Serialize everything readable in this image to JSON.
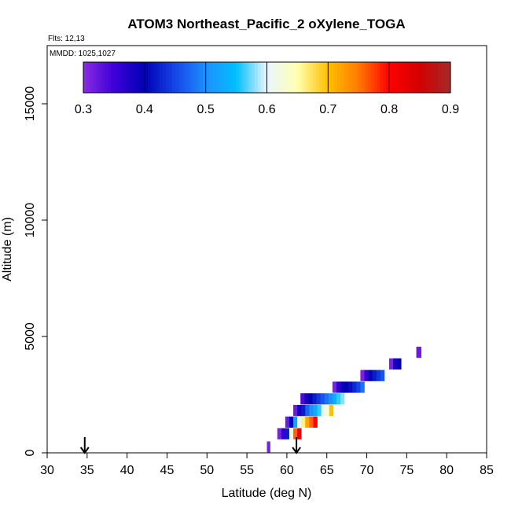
{
  "chart_data": {
    "type": "heatmap",
    "title": "ATOM3 Northeast_Pacific_2 oXylene_TOGA",
    "flights_label": "Flts: 12,13",
    "mmdd_label": "MMDD: 1025,1027",
    "xlabel": "Latitude (deg N)",
    "ylabel": "Altitude (m)",
    "xlim": [
      30,
      85
    ],
    "ylim": [
      0,
      17500
    ],
    "x_ticks": [
      "30",
      "35",
      "40",
      "45",
      "50",
      "55",
      "60",
      "65",
      "70",
      "75",
      "80",
      "85"
    ],
    "y_ticks": [
      "0",
      "5000",
      "10000",
      "15000"
    ],
    "colorbar": {
      "range": [
        0.3,
        0.9
      ],
      "ticks": [
        "0.3",
        "0.4",
        "0.5",
        "0.6",
        "0.7",
        "0.8",
        "0.9"
      ],
      "colors": [
        {
          "v": 0.3,
          "c": "#8a2be2"
        },
        {
          "v": 0.35,
          "c": "#3d00d8"
        },
        {
          "v": 0.4,
          "c": "#0000b4"
        },
        {
          "v": 0.45,
          "c": "#1446e6"
        },
        {
          "v": 0.5,
          "c": "#1e90ff"
        },
        {
          "v": 0.55,
          "c": "#00bfff"
        },
        {
          "v": 0.6,
          "c": "#eaf6ff"
        },
        {
          "v": 0.65,
          "c": "#ffffb0"
        },
        {
          "v": 0.7,
          "c": "#ffc000"
        },
        {
          "v": 0.75,
          "c": "#ff7a00"
        },
        {
          "v": 0.8,
          "c": "#ff0000"
        },
        {
          "v": 0.85,
          "c": "#d20000"
        },
        {
          "v": 0.9,
          "c": "#a52a2a"
        }
      ]
    },
    "arrows_lat": [
      34.7,
      61.2
    ],
    "bin_height_m": 480,
    "rows": [
      {
        "alt": 4320,
        "cells": [
          {
            "lat0": 76.2,
            "lat1": 76.8,
            "v": 0.32
          }
        ]
      },
      {
        "alt": 3820,
        "cells": [
          {
            "lat0": 72.8,
            "lat1": 73.3,
            "v": 0.31
          },
          {
            "lat0": 73.3,
            "lat1": 73.8,
            "v": 0.38
          },
          {
            "lat0": 73.8,
            "lat1": 74.3,
            "v": 0.4
          }
        ]
      },
      {
        "alt": 3320,
        "cells": [
          {
            "lat0": 69.2,
            "lat1": 69.7,
            "v": 0.31
          },
          {
            "lat0": 69.7,
            "lat1": 70.2,
            "v": 0.36
          },
          {
            "lat0": 70.2,
            "lat1": 70.7,
            "v": 0.4
          },
          {
            "lat0": 70.7,
            "lat1": 71.2,
            "v": 0.42
          },
          {
            "lat0": 71.2,
            "lat1": 71.7,
            "v": 0.44
          },
          {
            "lat0": 71.7,
            "lat1": 72.2,
            "v": 0.46
          }
        ]
      },
      {
        "alt": 2820,
        "cells": [
          {
            "lat0": 65.7,
            "lat1": 66.2,
            "v": 0.31
          },
          {
            "lat0": 66.2,
            "lat1": 66.7,
            "v": 0.36
          },
          {
            "lat0": 66.7,
            "lat1": 67.2,
            "v": 0.4
          },
          {
            "lat0": 67.2,
            "lat1": 67.7,
            "v": 0.4
          },
          {
            "lat0": 67.7,
            "lat1": 68.2,
            "v": 0.41
          },
          {
            "lat0": 68.2,
            "lat1": 68.7,
            "v": 0.43
          },
          {
            "lat0": 68.7,
            "lat1": 69.2,
            "v": 0.45
          },
          {
            "lat0": 69.2,
            "lat1": 69.7,
            "v": 0.48
          }
        ]
      },
      {
        "alt": 2320,
        "cells": [
          {
            "lat0": 61.7,
            "lat1": 62.2,
            "v": 0.34
          },
          {
            "lat0": 62.2,
            "lat1": 62.7,
            "v": 0.38
          },
          {
            "lat0": 62.7,
            "lat1": 63.2,
            "v": 0.4
          },
          {
            "lat0": 63.2,
            "lat1": 63.7,
            "v": 0.42
          },
          {
            "lat0": 63.7,
            "lat1": 64.2,
            "v": 0.44
          },
          {
            "lat0": 64.2,
            "lat1": 64.7,
            "v": 0.46
          },
          {
            "lat0": 64.7,
            "lat1": 65.2,
            "v": 0.48
          },
          {
            "lat0": 65.2,
            "lat1": 65.7,
            "v": 0.5
          },
          {
            "lat0": 65.7,
            "lat1": 66.2,
            "v": 0.53
          },
          {
            "lat0": 66.2,
            "lat1": 66.7,
            "v": 0.56
          },
          {
            "lat0": 66.7,
            "lat1": 67.2,
            "v": 0.58
          }
        ]
      },
      {
        "alt": 1820,
        "cells": [
          {
            "lat0": 60.8,
            "lat1": 61.3,
            "v": 0.32
          },
          {
            "lat0": 61.3,
            "lat1": 61.8,
            "v": 0.38
          },
          {
            "lat0": 61.8,
            "lat1": 62.3,
            "v": 0.42
          },
          {
            "lat0": 62.3,
            "lat1": 62.8,
            "v": 0.47
          },
          {
            "lat0": 62.8,
            "lat1": 63.3,
            "v": 0.5
          },
          {
            "lat0": 63.3,
            "lat1": 63.8,
            "v": 0.53
          },
          {
            "lat0": 63.8,
            "lat1": 64.3,
            "v": 0.56
          },
          {
            "lat0": 64.3,
            "lat1": 64.8,
            "v": 0.6
          },
          {
            "lat0": 64.8,
            "lat1": 65.3,
            "v": 0.63
          },
          {
            "lat0": 65.3,
            "lat1": 65.8,
            "v": 0.7
          }
        ]
      },
      {
        "alt": 1320,
        "cells": [
          {
            "lat0": 59.8,
            "lat1": 60.3,
            "v": 0.32
          },
          {
            "lat0": 60.3,
            "lat1": 60.8,
            "v": 0.4
          },
          {
            "lat0": 60.8,
            "lat1": 61.3,
            "v": 0.52
          },
          {
            "lat0": 61.3,
            "lat1": 61.8,
            "v": 0.6
          },
          {
            "lat0": 61.8,
            "lat1": 62.3,
            "v": 0.66
          },
          {
            "lat0": 62.3,
            "lat1": 62.8,
            "v": 0.72
          },
          {
            "lat0": 62.8,
            "lat1": 63.3,
            "v": 0.76
          },
          {
            "lat0": 63.3,
            "lat1": 63.8,
            "v": 0.8
          }
        ]
      },
      {
        "alt": 820,
        "cells": [
          {
            "lat0": 58.8,
            "lat1": 59.3,
            "v": 0.31
          },
          {
            "lat0": 59.3,
            "lat1": 59.8,
            "v": 0.36
          },
          {
            "lat0": 59.8,
            "lat1": 60.3,
            "v": 0.42
          },
          {
            "lat0": 60.3,
            "lat1": 60.8,
            "v": 0.62
          },
          {
            "lat0": 60.8,
            "lat1": 61.3,
            "v": 0.76
          },
          {
            "lat0": 61.3,
            "lat1": 61.8,
            "v": 0.82
          }
        ]
      },
      {
        "alt": 250,
        "cells": [
          {
            "lat0": 57.5,
            "lat1": 57.9,
            "v": 0.31
          }
        ]
      }
    ]
  }
}
